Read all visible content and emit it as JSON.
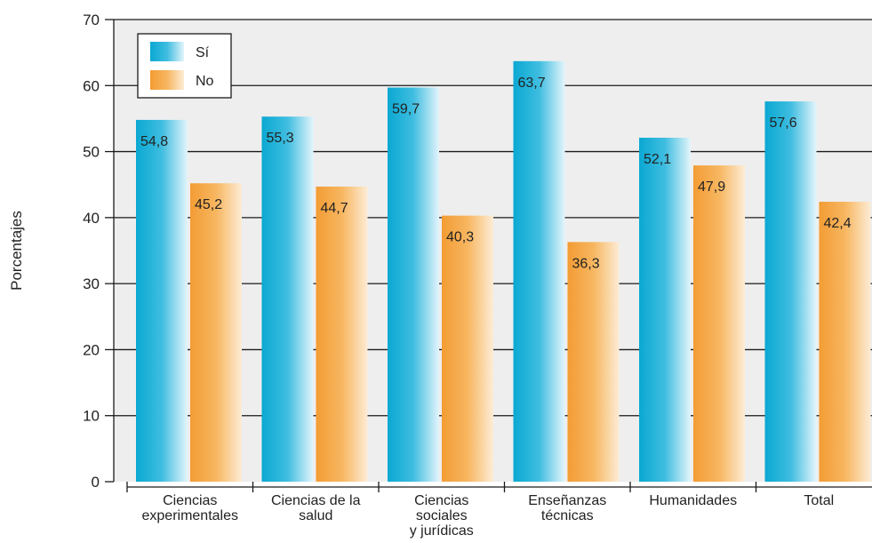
{
  "chart_data": {
    "type": "bar",
    "title": "",
    "xlabel": "",
    "ylabel": "Porcentajes",
    "ylim": [
      0,
      70
    ],
    "yticks": [
      0,
      10,
      20,
      30,
      40,
      50,
      60,
      70
    ],
    "categories": [
      [
        "Ciencias",
        "experimentales"
      ],
      [
        "Ciencias de la",
        "salud"
      ],
      [
        "Ciencias",
        "sociales",
        "y jurídicas"
      ],
      [
        "Enseñanzas",
        "técnicas"
      ],
      [
        "Humanidades"
      ],
      [
        "Total"
      ]
    ],
    "series": [
      {
        "name": "Sí",
        "values": [
          54.8,
          55.3,
          59.7,
          63.7,
          52.1,
          57.6
        ],
        "labels": [
          "54,8",
          "55,3",
          "59,7",
          "63,7",
          "52,1",
          "57,6"
        ]
      },
      {
        "name": "No",
        "values": [
          45.2,
          44.7,
          40.3,
          36.3,
          47.9,
          42.4
        ],
        "labels": [
          "45,2",
          "44,7",
          "40,3",
          "36,3",
          "47,9",
          "42,4"
        ]
      }
    ],
    "grid": true,
    "legend": "top-left",
    "colors": {
      "plot_bg": "#eeeeee",
      "si_dark": "#0aa8d2",
      "si_light": "#dff3fa",
      "no_dark": "#f39c34",
      "no_light": "#fde9cf"
    }
  }
}
